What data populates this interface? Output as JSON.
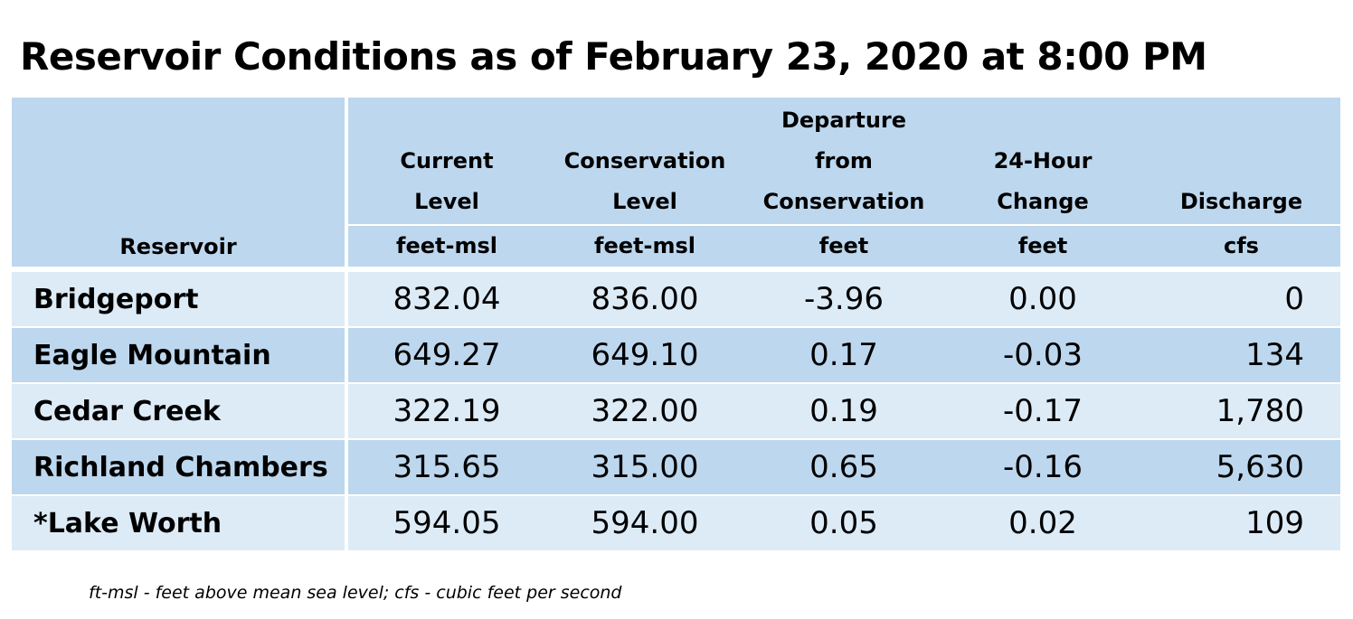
{
  "title": "Reservoir Conditions as of February 23, 2020 at 8:00 PM",
  "header": {
    "reservoir": "Reservoir",
    "current_level": [
      "Current",
      "Level"
    ],
    "conservation_level": [
      "Conservation",
      "Level"
    ],
    "departure": [
      "Departure",
      "from",
      "Conservation"
    ],
    "change": [
      "24-Hour",
      "Change"
    ],
    "discharge": [
      "Discharge"
    ]
  },
  "units": {
    "current_level": "feet-msl",
    "conservation_level": "feet-msl",
    "departure": "feet",
    "change": "feet",
    "discharge": "cfs"
  },
  "rows": [
    {
      "name": "Bridgeport",
      "current": "832.04",
      "conservation": "836.00",
      "departure": "-3.96",
      "change": "0.00",
      "discharge": "0"
    },
    {
      "name": "Eagle Mountain",
      "current": "649.27",
      "conservation": "649.10",
      "departure": "0.17",
      "change": "-0.03",
      "discharge": "134"
    },
    {
      "name": "Cedar Creek",
      "current": "322.19",
      "conservation": "322.00",
      "departure": "0.19",
      "change": "-0.17",
      "discharge": "1,780"
    },
    {
      "name": "Richland Chambers",
      "current": "315.65",
      "conservation": "315.00",
      "departure": "0.65",
      "change": "-0.16",
      "discharge": "5,630"
    },
    {
      "name": "*Lake Worth",
      "current": "594.05",
      "conservation": "594.00",
      "departure": "0.05",
      "change": "0.02",
      "discharge": "109"
    }
  ],
  "footnote": "ft-msl - feet above mean sea level; cfs - cubic feet per second",
  "colors": {
    "header_bg": "#bdd7ee",
    "row_light": "#ddebf7",
    "row_dark": "#bdd7ee"
  }
}
